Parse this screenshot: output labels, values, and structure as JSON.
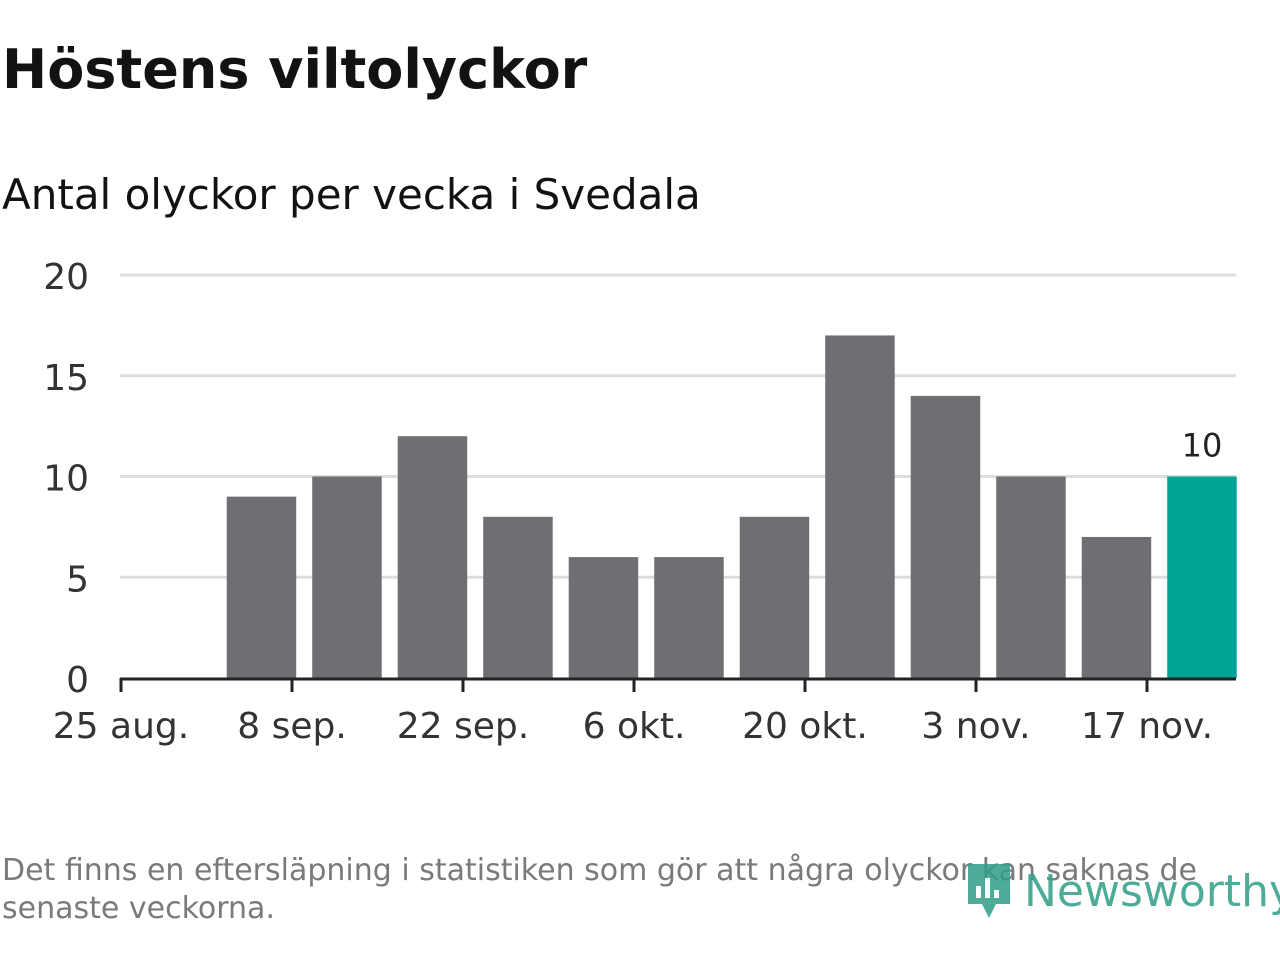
{
  "title": "Höstens viltolyckor",
  "subtitle": "Antal olyckor per vecka i Svedala",
  "note": "Det finns en eftersläpning i statistiken som gör att några olyckor kan saknas de senaste veckorna.",
  "brand": "Newsworthy",
  "colors": {
    "bar": "#6f6e73",
    "highlight": "#00a497",
    "grid": "#dddddd",
    "axis": "#222222",
    "brand": "#2f9e87"
  },
  "chart_data": {
    "type": "bar",
    "title": "Höstens viltolyckor",
    "subtitle": "Antal olyckor per vecka i Svedala",
    "xlabel": "",
    "ylabel": "",
    "ylim": [
      0,
      20
    ],
    "yticks": [
      0,
      5,
      10,
      15,
      20
    ],
    "grid": true,
    "x": [
      "2019-08-26",
      "2019-09-02",
      "2019-09-09",
      "2019-09-16",
      "2019-09-23",
      "2019-09-30",
      "2019-10-07",
      "2019-10-14",
      "2019-10-21",
      "2019-10-28",
      "2019-11-04",
      "2019-11-11",
      "2019-11-18"
    ],
    "values": [
      null,
      9,
      10,
      12,
      8,
      6,
      6,
      8,
      17,
      14,
      10,
      7,
      10
    ],
    "xticks": [
      {
        "x": "2019-08-25",
        "label": "25 aug."
      },
      {
        "x": "2019-09-08",
        "label": "8 sep."
      },
      {
        "x": "2019-09-22",
        "label": "22 sep."
      },
      {
        "x": "2019-10-06",
        "label": "6 okt."
      },
      {
        "x": "2019-10-20",
        "label": "20 okt."
      },
      {
        "x": "2019-11-03",
        "label": "3 nov."
      },
      {
        "x": "2019-11-17",
        "label": "17 nov."
      }
    ],
    "highlight_index": 12,
    "annotations": [
      {
        "index": 12,
        "text": "10"
      }
    ]
  }
}
